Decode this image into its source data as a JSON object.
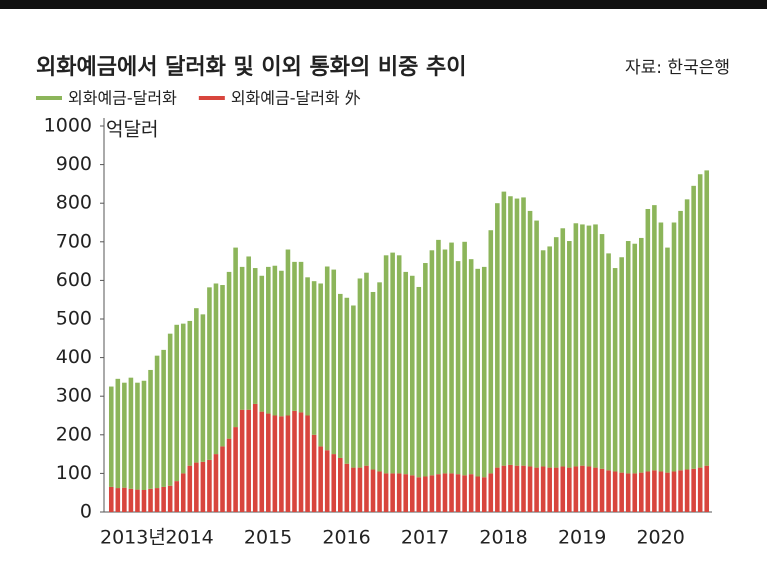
{
  "chart_data": {
    "type": "stacked_bar",
    "title": "외화예금에서 달러화 및 이외 통화의 비중 추이",
    "source": "자료: 한국은행",
    "y_unit": "억달러",
    "categories": [
      "2013년",
      null,
      null,
      null,
      null,
      null,
      null,
      null,
      null,
      null,
      null,
      null,
      "2014",
      null,
      null,
      null,
      null,
      null,
      null,
      null,
      null,
      null,
      null,
      null,
      "2015",
      null,
      null,
      null,
      null,
      null,
      null,
      null,
      null,
      null,
      null,
      null,
      "2016",
      null,
      null,
      null,
      null,
      null,
      null,
      null,
      null,
      null,
      null,
      null,
      "2017",
      null,
      null,
      null,
      null,
      null,
      null,
      null,
      null,
      null,
      null,
      null,
      "2018",
      null,
      null,
      null,
      null,
      null,
      null,
      null,
      null,
      null,
      null,
      null,
      "2019",
      null,
      null,
      null,
      null,
      null,
      null,
      null,
      null,
      null,
      null,
      null,
      "2020",
      null,
      null,
      null,
      null,
      null,
      null,
      null
    ],
    "series": [
      {
        "name": "외화예금-달러화",
        "color": "#8cb55a",
        "values": [
          260,
          283,
          272,
          288,
          277,
          283,
          308,
          343,
          355,
          394,
          405,
          388,
          375,
          400,
          382,
          447,
          442,
          418,
          432,
          465,
          370,
          397,
          352,
          352,
          380,
          388,
          377,
          430,
          386,
          390,
          358,
          398,
          422,
          476,
          478,
          425,
          430,
          420,
          490,
          500,
          460,
          490,
          565,
          572,
          565,
          524,
          517,
          493,
          553,
          583,
          607,
          580,
          598,
          552,
          605,
          557,
          538,
          545,
          630,
          685,
          710,
          696,
          692,
          695,
          662,
          640,
          560,
          573,
          597,
          617,
          587,
          630,
          625,
          624,
          630,
          608,
          562,
          527,
          558,
          602,
          595,
          608,
          680,
          687,
          645,
          583,
          645,
          672,
          700,
          733,
          760,
          765
        ]
      },
      {
        "name": "외화예금-달러화 外",
        "color": "#d8453d",
        "values": [
          65,
          62,
          63,
          60,
          58,
          57,
          60,
          62,
          65,
          68,
          80,
          100,
          120,
          128,
          130,
          135,
          150,
          170,
          190,
          220,
          265,
          265,
          280,
          260,
          255,
          250,
          248,
          250,
          262,
          258,
          250,
          200,
          170,
          160,
          150,
          140,
          125,
          115,
          115,
          120,
          110,
          105,
          100,
          100,
          100,
          98,
          95,
          90,
          92,
          95,
          98,
          100,
          100,
          98,
          95,
          98,
          92,
          90,
          100,
          115,
          120,
          122,
          120,
          120,
          118,
          115,
          118,
          115,
          115,
          118,
          115,
          118,
          120,
          118,
          115,
          112,
          108,
          105,
          102,
          100,
          100,
          102,
          105,
          108,
          105,
          102,
          105,
          108,
          110,
          112,
          115,
          120
        ]
      }
    ],
    "stack_order": "bottom_last",
    "ylim": [
      0,
      1000
    ],
    "yticks": [
      0,
      100,
      200,
      300,
      400,
      500,
      600,
      700,
      800,
      900,
      1000
    ],
    "grid": false
  }
}
